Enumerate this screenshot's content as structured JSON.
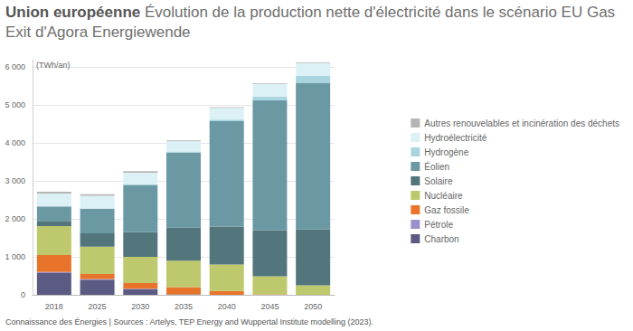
{
  "chart_data": {
    "type": "bar",
    "title": "Union européenne",
    "subtitle": "Évolution de la production nette d'électricité dans le scénario EU Gas Exit d'Agora Energiewende",
    "ylabel": "(TWh/an)",
    "source": "Connaissance des Énergies | Sources : Artelys, TEP Energy and Wuppertal Institute modelling (2023).",
    "categories": [
      "2018",
      "2025",
      "2030",
      "2035",
      "2040",
      "2045",
      "2050"
    ],
    "stacked": true,
    "legend": "right",
    "grid": true,
    "ylim": [
      0,
      6200
    ],
    "yticks": [
      0,
      {
        "value": 1000,
        "label": "1 000"
      },
      {
        "value": 2000,
        "label": "2 000"
      },
      {
        "value": 3000,
        "label": "3 000"
      },
      {
        "value": 4000,
        "label": "4 000"
      },
      {
        "value": 5000,
        "label": "5 000"
      },
      {
        "value": 6000,
        "label": "6 000"
      }
    ],
    "series": [
      {
        "name": "Charbon",
        "color": "#5b5a82",
        "values": [
          570,
          400,
          150,
          10,
          0,
          0,
          0
        ]
      },
      {
        "name": "Pétrole",
        "color": "#9a90cb",
        "values": [
          30,
          20,
          10,
          0,
          0,
          0,
          0
        ]
      },
      {
        "name": "Gaz fossile",
        "color": "#e8732a",
        "values": [
          450,
          130,
          150,
          190,
          100,
          10,
          0
        ]
      },
      {
        "name": "Nucléaire",
        "color": "#bec86c",
        "values": [
          760,
          720,
          690,
          700,
          700,
          480,
          250
        ]
      },
      {
        "name": "Solaire",
        "color": "#52767b",
        "values": [
          140,
          350,
          650,
          870,
          1000,
          1210,
          1480
        ]
      },
      {
        "name": "Éolien",
        "color": "#6b99a3",
        "values": [
          380,
          650,
          1250,
          1980,
          2780,
          3430,
          3860
        ]
      },
      {
        "name": "Hydrogène",
        "color": "#a8d5df",
        "values": [
          0,
          10,
          20,
          30,
          40,
          100,
          180
        ]
      },
      {
        "name": "Hydroélectricité",
        "color": "#dcf1f5",
        "values": [
          340,
          330,
          300,
          270,
          310,
          330,
          340
        ]
      },
      {
        "name": "Autres renouvelables et incinération des déchets",
        "color": "#b5b5b5",
        "values": [
          50,
          40,
          40,
          20,
          20,
          20,
          20
        ]
      }
    ]
  }
}
